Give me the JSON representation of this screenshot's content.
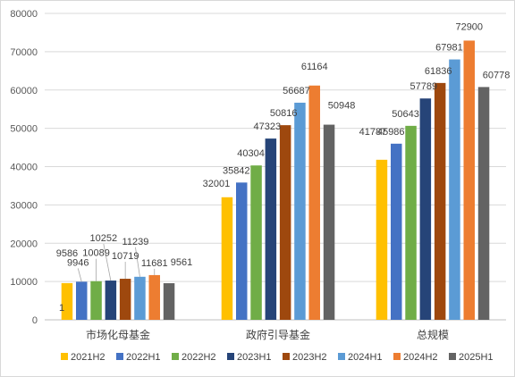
{
  "chart_data": {
    "type": "bar",
    "title": "",
    "xlabel": "",
    "ylabel": "",
    "ylim": [
      0,
      80000
    ],
    "yticks": [
      0,
      10000,
      20000,
      30000,
      40000,
      50000,
      60000,
      70000,
      80000
    ],
    "grid": true,
    "legend_position": "bottom",
    "categories": [
      "市场化母基金",
      "政府引导基金",
      "总规模"
    ],
    "series": [
      {
        "name": "2021H2",
        "color": "#FFC000",
        "values": [
          9586,
          32001,
          41787
        ],
        "labels": [
          "9586",
          "32001",
          "41787"
        ]
      },
      {
        "name": "2022H1",
        "color": "#4472C4",
        "values": [
          9946,
          35842,
          45986
        ],
        "labels": [
          "9946",
          "35842",
          "45986"
        ]
      },
      {
        "name": "2022H2",
        "color": "#70AD47",
        "values": [
          10089,
          40304,
          50643
        ],
        "labels": [
          "10089",
          "40304",
          "50643"
        ]
      },
      {
        "name": "2023H1",
        "color": "#264478",
        "values": [
          10252,
          47323,
          57789
        ],
        "labels": [
          "10252",
          "47323",
          "57789"
        ]
      },
      {
        "name": "2023H2",
        "color": "#9E480E",
        "values": [
          10719,
          50816,
          61836
        ],
        "labels": [
          "10719",
          "50816",
          "61836"
        ]
      },
      {
        "name": "2024H1",
        "color": "#5B9BD5",
        "values": [
          11239,
          56687,
          67981
        ],
        "labels": [
          "11239",
          "56687",
          "67981"
        ]
      },
      {
        "name": "2024H2",
        "color": "#ED7D31",
        "values": [
          11681,
          61164,
          72900
        ],
        "labels": [
          "11681",
          "61164",
          "72900"
        ]
      },
      {
        "name": "2025H1",
        "color": "#636363",
        "values": [
          9561,
          50948,
          60778
        ],
        "labels": [
          "9561",
          "50948",
          "60778"
        ]
      }
    ],
    "annotations": [
      "1"
    ]
  }
}
